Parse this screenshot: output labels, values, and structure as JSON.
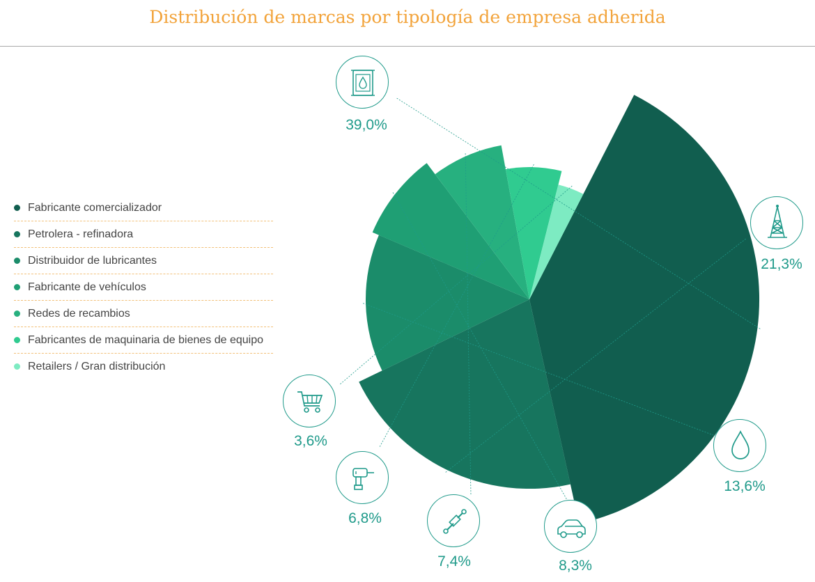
{
  "title": "Distribución de marcas por tipología de empresa adherida",
  "legend": [
    {
      "label": "Fabricante comercializador",
      "color": "#115e4f"
    },
    {
      "label": "Petrolera - refinadora",
      "color": "#17755e"
    },
    {
      "label": "Distribuidor de lubricantes",
      "color": "#1b8c6a"
    },
    {
      "label": "Fabricante de vehículos",
      "color": "#1f9f74"
    },
    {
      "label": "Redes de recambios",
      "color": "#27b07f"
    },
    {
      "label": "Fabricantes de maquinaria de bienes de equipo",
      "color": "#30cb90"
    },
    {
      "label": "Retailers / Gran distribución",
      "color": "#7debc2"
    }
  ],
  "chart_data": {
    "type": "pie",
    "title": "Distribución de marcas por tipología de empresa adherida",
    "categories": [
      "Fabricante comercializador",
      "Petrolera - refinadora",
      "Distribuidor de lubricantes",
      "Fabricante de vehículos",
      "Redes de recambios",
      "Fabricantes de maquinaria de bienes de equipo",
      "Retailers / Gran distribución"
    ],
    "values": [
      39.0,
      21.3,
      13.6,
      8.3,
      7.4,
      6.8,
      3.6
    ],
    "value_labels": [
      "39,0%",
      "21,3%",
      "13,6%",
      "8,3%",
      "7,4%",
      "6,8%",
      "3,6%"
    ],
    "icons": [
      "oil-can-icon",
      "oil-derrick-icon",
      "drop-icon",
      "car-icon",
      "shock-absorber-icon",
      "drill-icon",
      "shopping-cart-icon"
    ],
    "variable_radius": true,
    "legend_position": "left"
  }
}
